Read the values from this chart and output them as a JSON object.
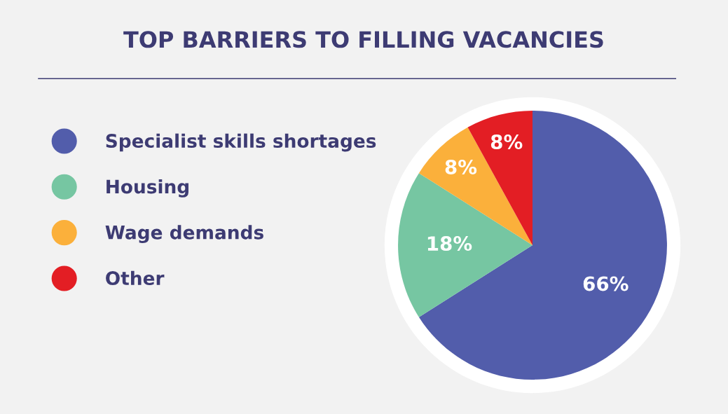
{
  "chart_data": {
    "type": "pie",
    "title": "TOP BARRIERS TO FILLING VACANCIES",
    "categories": [
      "Specialist skills shortages",
      "Housing",
      "Wage demands",
      "Other"
    ],
    "values": [
      66,
      18,
      8,
      8
    ],
    "colors": [
      "#525dab",
      "#76c6a2",
      "#fbb03b",
      "#e31e24"
    ],
    "value_labels": [
      "66%",
      "18%",
      "8%",
      "8%"
    ],
    "legend": "left"
  }
}
